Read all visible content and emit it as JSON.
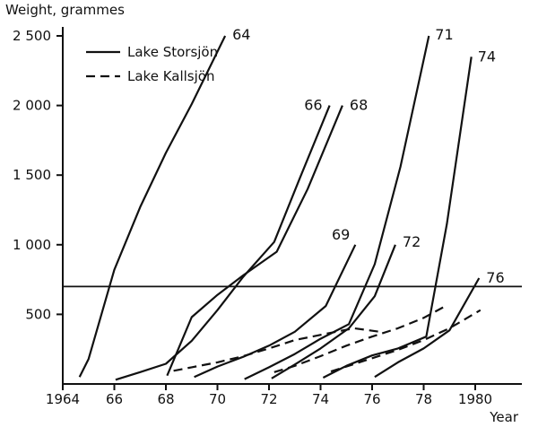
{
  "chart_data": {
    "type": "line",
    "title": "",
    "ylabel": "Weight, grammes",
    "xlabel": "Year",
    "xlim": [
      1964,
      1981.8
    ],
    "ylim": [
      0,
      2570
    ],
    "grid": false,
    "legend_position": "top-left",
    "x_ticks": [
      {
        "v": 1964,
        "label": "1964"
      },
      {
        "v": 1966,
        "label": "66"
      },
      {
        "v": 1968,
        "label": "68"
      },
      {
        "v": 1970,
        "label": "70"
      },
      {
        "v": 1972,
        "label": "72"
      },
      {
        "v": 1974,
        "label": "74"
      },
      {
        "v": 1976,
        "label": "76"
      },
      {
        "v": 1978,
        "label": "78"
      },
      {
        "v": 1980,
        "label": "1980"
      }
    ],
    "y_ticks": [
      {
        "v": 500,
        "label": "500"
      },
      {
        "v": 1000,
        "label": "1 000"
      },
      {
        "v": 1500,
        "label": "1 500"
      },
      {
        "v": 2000,
        "label": "2 000"
      },
      {
        "v": 2500,
        "label": "2 500"
      }
    ],
    "reference_line": {
      "y": 700
    },
    "legend": [
      {
        "label": "Lake Storsjön",
        "style": "solid"
      },
      {
        "label": "Lake Kallsjön",
        "style": "dashed"
      }
    ],
    "line_color": "#111111",
    "series": [
      {
        "name": "storsjon-year-class-64",
        "lake": "Lake Storsjön",
        "style": "solid",
        "label": "64",
        "label_dx": 8,
        "label_dy": 4,
        "points": [
          [
            1964.65,
            50
          ],
          [
            1965,
            180
          ],
          [
            1966,
            820
          ],
          [
            1967,
            1270
          ],
          [
            1968,
            1660
          ],
          [
            1969,
            2010
          ],
          [
            1970.3,
            2500
          ]
        ]
      },
      {
        "name": "storsjon-year-class-66",
        "lake": "Lake Storsjön",
        "style": "solid",
        "label": "66",
        "label_dx": -8,
        "label_dy": 5,
        "label_anchor": "end",
        "points": [
          [
            1966.05,
            30
          ],
          [
            1967,
            85
          ],
          [
            1968,
            145
          ],
          [
            1969,
            310
          ],
          [
            1970,
            530
          ],
          [
            1971,
            770
          ],
          [
            1972.2,
            1020
          ],
          [
            1973.2,
            1480
          ],
          [
            1974.35,
            2000
          ]
        ]
      },
      {
        "name": "storsjon-year-class-68",
        "lake": "Lake Storsjön",
        "style": "solid",
        "label": "68",
        "label_dx": 8,
        "label_dy": 5,
        "points": [
          [
            1968.05,
            60
          ],
          [
            1969,
            480
          ],
          [
            1970,
            640
          ],
          [
            1971,
            780
          ],
          [
            1972.3,
            950
          ],
          [
            1973.5,
            1400
          ],
          [
            1974.85,
            2000
          ]
        ]
      },
      {
        "name": "storsjon-year-class-69",
        "lake": "Lake Storsjön",
        "style": "solid",
        "label": "69",
        "label_dx": -6,
        "label_dy": -6,
        "label_anchor": "end",
        "points": [
          [
            1969.1,
            50
          ],
          [
            1970,
            125
          ],
          [
            1971,
            195
          ],
          [
            1972,
            275
          ],
          [
            1973,
            375
          ],
          [
            1974.2,
            560
          ],
          [
            1975.35,
            1000
          ]
        ]
      },
      {
        "name": "storsjon-year-class-71",
        "lake": "Lake Storsjön",
        "style": "solid",
        "label": "71",
        "label_dx": 7,
        "label_dy": 4,
        "points": [
          [
            1971.05,
            35
          ],
          [
            1972,
            120
          ],
          [
            1973,
            215
          ],
          [
            1974,
            325
          ],
          [
            1975.1,
            430
          ],
          [
            1976.1,
            860
          ],
          [
            1977.1,
            1560
          ],
          [
            1978.2,
            2500
          ]
        ]
      },
      {
        "name": "storsjon-year-class-72",
        "lake": "Lake Storsjön",
        "style": "solid",
        "label": "72",
        "label_dx": 8,
        "label_dy": 2,
        "points": [
          [
            1972.1,
            40
          ],
          [
            1973,
            140
          ],
          [
            1974,
            255
          ],
          [
            1975.1,
            400
          ],
          [
            1976.1,
            630
          ],
          [
            1976.9,
            1000
          ]
        ]
      },
      {
        "name": "storsjon-year-class-74",
        "lake": "Lake Storsjön",
        "style": "solid",
        "label": "74",
        "label_dx": 7,
        "label_dy": 5,
        "points": [
          [
            1974.1,
            45
          ],
          [
            1975,
            130
          ],
          [
            1976,
            205
          ],
          [
            1977,
            255
          ],
          [
            1978.1,
            340
          ],
          [
            1978.9,
            1150
          ],
          [
            1979.85,
            2350
          ]
        ]
      },
      {
        "name": "storsjon-year-class-76",
        "lake": "Lake Storsjön",
        "style": "solid",
        "label": "76",
        "label_dx": 8,
        "label_dy": 5,
        "points": [
          [
            1976.1,
            50
          ],
          [
            1977,
            155
          ],
          [
            1978,
            255
          ],
          [
            1979,
            385
          ],
          [
            1980.15,
            760
          ]
        ]
      },
      {
        "name": "kallsjon-year-class-68",
        "lake": "Lake Kallsjön",
        "style": "dashed",
        "label": "",
        "points": [
          [
            1968.3,
            95
          ],
          [
            1969,
            120
          ],
          [
            1970,
            155
          ],
          [
            1971,
            200
          ],
          [
            1972,
            255
          ],
          [
            1973,
            315
          ],
          [
            1974.2,
            360
          ],
          [
            1975.3,
            400
          ],
          [
            1976.3,
            375
          ]
        ]
      },
      {
        "name": "kallsjon-year-class-72",
        "lake": "Lake Kallsjön",
        "style": "dashed",
        "label": "",
        "points": [
          [
            1972.2,
            85
          ],
          [
            1973,
            130
          ],
          [
            1974,
            200
          ],
          [
            1975,
            275
          ],
          [
            1976,
            340
          ],
          [
            1977,
            400
          ],
          [
            1978,
            475
          ],
          [
            1978.8,
            555
          ]
        ]
      },
      {
        "name": "kallsjon-year-class-74",
        "lake": "Lake Kallsjön",
        "style": "dashed",
        "label": "",
        "points": [
          [
            1974.4,
            90
          ],
          [
            1975,
            125
          ],
          [
            1976,
            185
          ],
          [
            1977,
            245
          ],
          [
            1978,
            315
          ],
          [
            1979,
            400
          ],
          [
            1980.2,
            530
          ]
        ]
      }
    ]
  }
}
